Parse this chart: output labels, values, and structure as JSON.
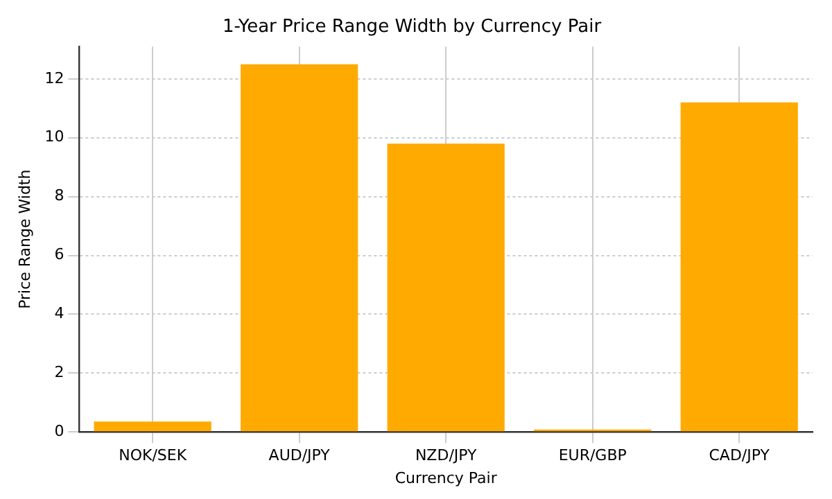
{
  "chart_data": {
    "type": "bar",
    "title": "1-Year Price Range Width by Currency Pair",
    "xlabel": "Currency Pair",
    "ylabel": "Price Range Width",
    "categories": [
      "NOK/SEK",
      "AUD/JPY",
      "NZD/JPY",
      "EUR/GBP",
      "CAD/JPY"
    ],
    "values": [
      0.35,
      12.5,
      9.8,
      0.08,
      11.2
    ],
    "color": "#ffaa00",
    "ylim": [
      0,
      13.1
    ],
    "yticks": [
      0,
      2,
      4,
      6,
      8,
      10,
      12
    ],
    "grid": true
  }
}
